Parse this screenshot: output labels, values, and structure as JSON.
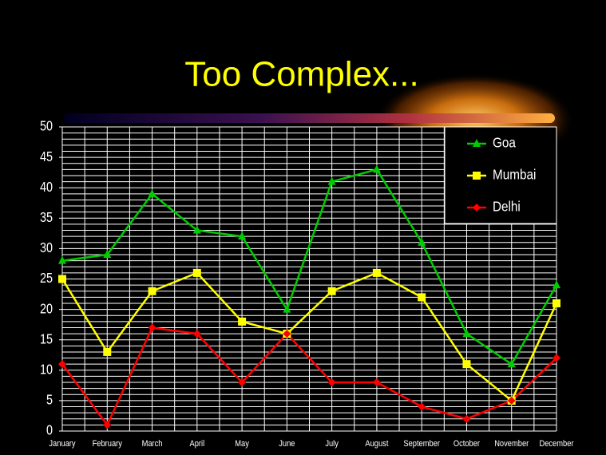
{
  "chart_data": {
    "type": "line",
    "title": "Too Complex...",
    "categories": [
      "January",
      "February",
      "March",
      "April",
      "May",
      "June",
      "July",
      "August",
      "September",
      "October",
      "November",
      "December"
    ],
    "series": [
      {
        "name": "Goa",
        "color": "#00cc00",
        "marker": "triangle",
        "values": [
          28,
          29,
          39,
          33,
          32,
          20,
          41,
          43,
          31,
          16,
          11,
          24
        ]
      },
      {
        "name": "Mumbai",
        "color": "#ffff00",
        "marker": "square",
        "values": [
          25,
          13,
          23,
          26,
          18,
          16,
          23,
          26,
          22,
          11,
          5,
          21
        ]
      },
      {
        "name": "Delhi",
        "color": "#ff0000",
        "marker": "diamond",
        "values": [
          11,
          1,
          17,
          16,
          8,
          16,
          8,
          8,
          4,
          2,
          5,
          12
        ]
      }
    ],
    "ylim": [
      0,
      50
    ],
    "yticks": [
      0,
      5,
      10,
      15,
      20,
      25,
      30,
      35,
      40,
      45,
      50
    ],
    "minor_yticks": [
      0,
      1,
      2,
      3,
      4,
      5,
      6,
      7,
      8,
      9,
      10,
      11,
      12,
      13,
      14,
      15,
      16,
      17,
      18,
      19,
      20,
      21,
      22,
      23,
      24,
      25,
      26,
      27,
      28,
      29,
      30,
      31,
      32,
      33,
      34,
      35,
      36,
      37,
      38,
      39,
      40,
      41,
      42,
      43,
      44,
      45,
      46,
      47,
      48,
      49,
      50
    ],
    "grid": true,
    "legend": "upper right"
  }
}
